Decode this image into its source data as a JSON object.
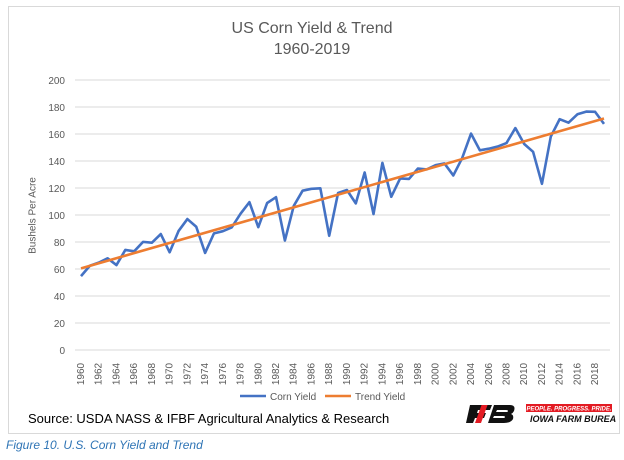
{
  "chart_data": {
    "type": "line",
    "title": "US Corn Yield & Trend",
    "subtitle": "1960-2019",
    "ylabel": "Bushels Per Acre",
    "xlabel": "",
    "ylim": [
      0,
      200
    ],
    "yticks": [
      0,
      20,
      40,
      60,
      80,
      100,
      120,
      140,
      160,
      180,
      200
    ],
    "grid": true,
    "legend": "bottom",
    "x": [
      1960,
      1961,
      1962,
      1963,
      1964,
      1965,
      1966,
      1967,
      1968,
      1969,
      1970,
      1971,
      1972,
      1973,
      1974,
      1975,
      1976,
      1977,
      1978,
      1979,
      1980,
      1981,
      1982,
      1983,
      1984,
      1985,
      1986,
      1987,
      1988,
      1989,
      1990,
      1991,
      1992,
      1993,
      1994,
      1995,
      1996,
      1997,
      1998,
      1999,
      2000,
      2001,
      2002,
      2003,
      2004,
      2005,
      2006,
      2007,
      2008,
      2009,
      2010,
      2011,
      2012,
      2013,
      2014,
      2015,
      2016,
      2017,
      2018,
      2019
    ],
    "xticks": [
      "1960",
      "1962",
      "1964",
      "1966",
      "1968",
      "1970",
      "1972",
      "1974",
      "1976",
      "1978",
      "1980",
      "1982",
      "1984",
      "1986",
      "1988",
      "1990",
      "1992",
      "1994",
      "1996",
      "1998",
      "2000",
      "2002",
      "2004",
      "2006",
      "2008",
      "2010",
      "2012",
      "2014",
      "2016",
      "2018"
    ],
    "series": [
      {
        "name": "Corn Yield",
        "color": "#4472c4",
        "values": [
          54.7,
          62.4,
          64.7,
          67.9,
          62.9,
          74.1,
          73.1,
          80.1,
          79.5,
          85.9,
          72.4,
          88.1,
          97.0,
          91.3,
          71.9,
          86.4,
          88.0,
          90.8,
          101.0,
          109.5,
          91.0,
          108.9,
          113.2,
          81.1,
          106.7,
          118.0,
          119.4,
          119.8,
          84.6,
          116.3,
          118.5,
          108.6,
          131.5,
          100.7,
          138.6,
          113.5,
          127.1,
          126.7,
          134.4,
          133.8,
          136.9,
          138.2,
          129.3,
          142.2,
          160.3,
          147.9,
          149.1,
          150.7,
          153.3,
          164.4,
          152.6,
          146.8,
          123.1,
          158.1,
          171.0,
          168.4,
          174.6,
          176.6,
          176.4,
          167.5
        ]
      },
      {
        "name": "Trend Yield",
        "color": "#ed7d31",
        "trend": {
          "start": 60.5,
          "end": 171.5
        }
      }
    ]
  },
  "source": "Source: USDA NASS & IFBF Agricultural Analytics & Research",
  "caption": "Figure 10. U.S. Corn Yield and Trend",
  "logo": {
    "tagline": "PEOPLE. PROGRESS. PRIDE.",
    "name": "IOWA FARM BUREAU",
    "brand_color": "#e31b23"
  }
}
